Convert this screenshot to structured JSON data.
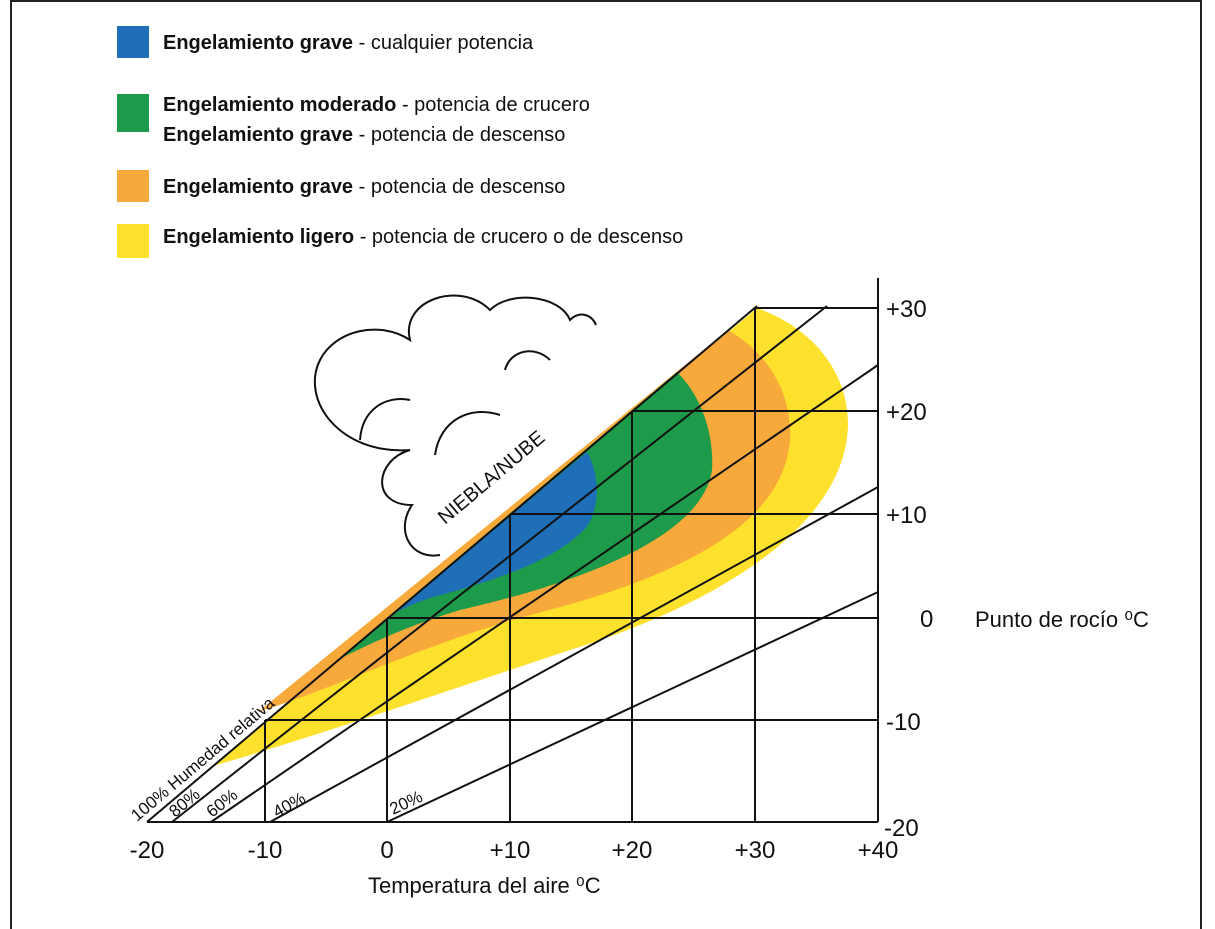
{
  "legend": [
    {
      "lines": [
        {
          "bold": "Engelamiento grave",
          "text": "- cualquier potencia"
        }
      ]
    },
    {
      "lines": [
        {
          "bold": "Engelamiento moderado",
          "text": "- potencia de crucero"
        },
        {
          "bold": "Engelamiento grave",
          "text": "- potencia de descenso"
        }
      ]
    },
    {
      "lines": [
        {
          "bold": "Engelamiento grave",
          "text": "- potencia de descenso"
        }
      ]
    },
    {
      "lines": [
        {
          "bold": "Engelamiento ligero",
          "text": "- potencia de crucero o de descenso"
        }
      ]
    }
  ],
  "x_axis": {
    "ticks": [
      "-20",
      "-10",
      "0",
      "+10",
      "+20",
      "+30",
      "+40"
    ],
    "title": "Temperatura del aire ⁰C"
  },
  "y_axis": {
    "ticks": [
      "+30",
      "+20",
      "+10",
      "0",
      "-10",
      "-20"
    ],
    "title": "Punto de rocío ⁰C"
  },
  "region_label": "NIEBLA/NUBE",
  "humidity_labels": [
    "100% Humedad relativa",
    "80%",
    "60%",
    "40%",
    "20%"
  ]
}
